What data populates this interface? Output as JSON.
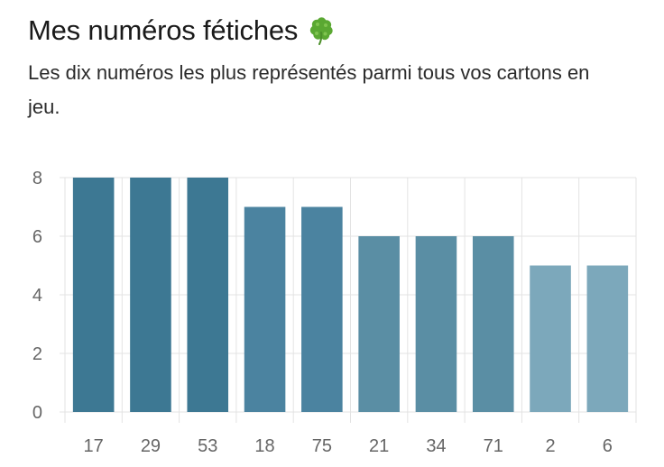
{
  "header": {
    "title": "Mes numéros fétiches",
    "title_icon": "four-leaf-clover-icon",
    "subtitle": "Les dix numéros les plus représentés parmi tous vos cartons en jeu."
  },
  "colors": {
    "bar_dark": "#3d7893",
    "bar_mid": "#5a8ea4",
    "bar_light": "#7ca8bb",
    "grid": "#e3e3e3",
    "axis_text": "#666666",
    "clover": "#5aa832"
  },
  "chart_data": {
    "type": "bar",
    "categories": [
      "17",
      "29",
      "53",
      "18",
      "75",
      "21",
      "34",
      "71",
      "2",
      "6"
    ],
    "values": [
      8,
      8,
      8,
      7,
      7,
      6,
      6,
      6,
      5,
      5
    ],
    "title": "",
    "xlabel": "",
    "ylabel": "",
    "ylim": [
      0,
      8
    ],
    "yticks": [
      0,
      2,
      4,
      6,
      8
    ],
    "grid": true,
    "legend": "none"
  }
}
